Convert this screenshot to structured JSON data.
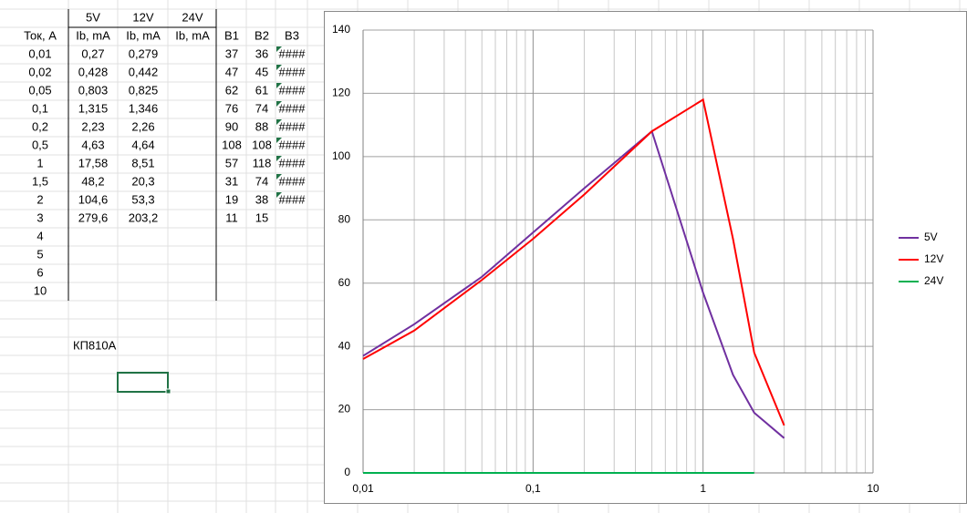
{
  "table": {
    "header_rows": [
      [
        "5V",
        "12V",
        "24V"
      ],
      [
        "Ток, А",
        "Ib, mA",
        "Ib, mA",
        "Ib, mA",
        "B1",
        "B2",
        "B3"
      ]
    ],
    "rows": [
      [
        "0,01",
        "0,27",
        "0,279",
        "37",
        "36",
        "####"
      ],
      [
        "0,02",
        "0,428",
        "0,442",
        "47",
        "45",
        "####"
      ],
      [
        "0,05",
        "0,803",
        "0,825",
        "62",
        "61",
        "####"
      ],
      [
        "0,1",
        "1,315",
        "1,346",
        "76",
        "74",
        "####"
      ],
      [
        "0,2",
        "2,23",
        "2,26",
        "90",
        "88",
        "####"
      ],
      [
        "0,5",
        "4,63",
        "4,64",
        "108",
        "108",
        "####"
      ],
      [
        "1",
        "17,58",
        "8,51",
        "57",
        "118",
        "####"
      ],
      [
        "1,5",
        "48,2",
        "20,3",
        "31",
        "74",
        "####"
      ],
      [
        "2",
        "104,6",
        "53,3",
        "19",
        "38",
        "####"
      ],
      [
        "3",
        "279,6",
        "203,2",
        "11",
        "15"
      ],
      [
        "4"
      ],
      [
        "5"
      ],
      [
        "6"
      ],
      [
        "10"
      ]
    ],
    "label": "КП810А"
  },
  "chart_data": {
    "type": "line",
    "x": [
      0.01,
      0.02,
      0.05,
      0.1,
      0.2,
      0.5,
      1,
      1.5,
      2,
      3
    ],
    "series": [
      {
        "name": "5V",
        "color": "#7030a0",
        "values": [
          37,
          47,
          62,
          76,
          90,
          108,
          57,
          31,
          19,
          11
        ]
      },
      {
        "name": "12V",
        "color": "#ff0000",
        "values": [
          36,
          45,
          61,
          74,
          88,
          108,
          118,
          74,
          38,
          15
        ]
      },
      {
        "name": "24V",
        "color": "#00b050",
        "values": [
          0,
          0,
          0,
          0,
          0,
          0,
          0,
          0,
          0,
          null
        ]
      }
    ],
    "xscale": "log",
    "xlim": [
      0.01,
      10
    ],
    "xticks": [
      {
        "value": 0.01,
        "label": "0,01"
      },
      {
        "value": 0.1,
        "label": "0,1"
      },
      1,
      10
    ],
    "ylim": [
      0,
      140
    ],
    "yticks": [
      0,
      20,
      40,
      60,
      80,
      100,
      120,
      140
    ],
    "grid": true,
    "minor_grid": true,
    "legend": "right"
  }
}
